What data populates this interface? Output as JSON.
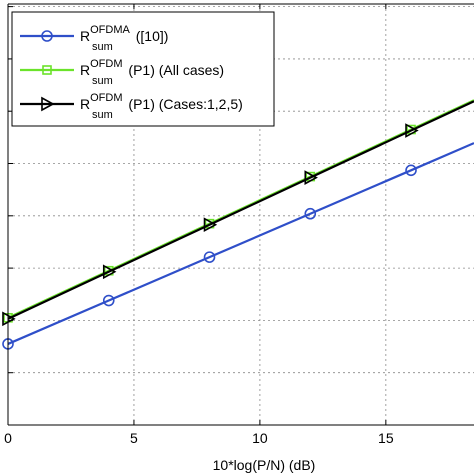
{
  "chart_data": {
    "type": "line",
    "xlabel": "10*log(P/N) (dB)",
    "ylabel": "",
    "title": "",
    "xlim": [
      0,
      18.5
    ],
    "ylim": [
      0,
      8.05
    ],
    "x_ticks": [
      0,
      5,
      10,
      15
    ],
    "x_tick_labels": [
      "0",
      "5",
      "10",
      "15"
    ],
    "y_ticks": [
      1,
      2,
      3,
      4,
      5,
      6,
      7,
      8
    ],
    "grid": true,
    "legend_position": "top-left",
    "series": [
      {
        "name_main": "R",
        "name_sub": "sum",
        "name_sup": "OFDMA",
        "name_suffix": " ([10])",
        "color": "#2f4fc9",
        "marker": "circle",
        "x": [
          0,
          4,
          8,
          12,
          16,
          18.5
        ],
        "y": [
          1.55,
          2.38,
          3.21,
          4.04,
          4.87,
          5.39
        ]
      },
      {
        "name_main": "R",
        "name_sub": "sum",
        "name_sup": "OFDM",
        "name_suffix": " (P1) (All cases)",
        "color": "#6be32a",
        "marker": "square",
        "x": [
          0,
          4,
          8,
          12,
          16,
          18.5
        ],
        "y": [
          2.05,
          2.95,
          3.85,
          4.75,
          5.65,
          6.21
        ]
      },
      {
        "name_main": "R",
        "name_sub": "sum",
        "name_sup": "OFDM",
        "name_suffix": " (P1) (Cases:1,2,5)",
        "color": "#000000",
        "marker": "triangle-right",
        "x": [
          0,
          4,
          8,
          12,
          16,
          18.5
        ],
        "y": [
          2.03,
          2.93,
          3.83,
          4.73,
          5.63,
          6.19
        ]
      }
    ]
  }
}
